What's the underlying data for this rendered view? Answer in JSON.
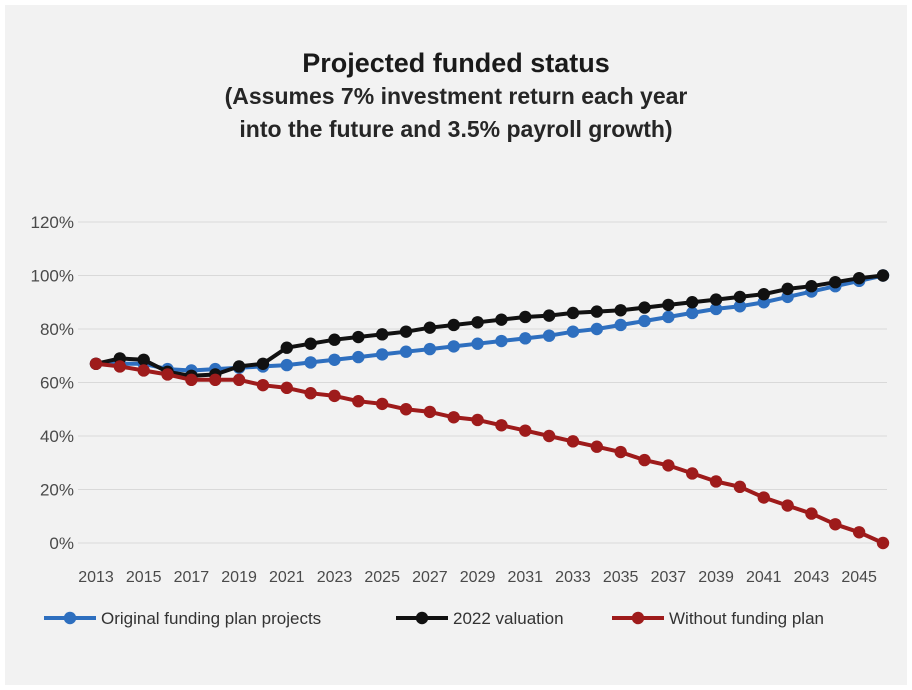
{
  "chart_data": {
    "type": "line",
    "title": "Projected funded status",
    "subtitle_lines": [
      "(Assumes 7% investment return each year",
      "into the future and 3.5% payroll growth)"
    ],
    "xlabel": "",
    "ylabel": "",
    "ylim": [
      0,
      120
    ],
    "yticks": [
      "0%",
      "20%",
      "40%",
      "60%",
      "80%",
      "100%",
      "120%"
    ],
    "ytick_values": [
      0,
      20,
      40,
      60,
      80,
      100,
      120
    ],
    "xticks": [
      "2013",
      "2015",
      "2017",
      "2019",
      "2021",
      "2023",
      "2025",
      "2027",
      "2029",
      "2031",
      "2033",
      "2035",
      "2037",
      "2039",
      "2041",
      "2043",
      "2045"
    ],
    "grid": true,
    "legend_position": "bottom",
    "x": [
      2013,
      2014,
      2015,
      2016,
      2017,
      2018,
      2019,
      2020,
      2021,
      2022,
      2023,
      2024,
      2025,
      2026,
      2027,
      2028,
      2029,
      2030,
      2031,
      2032,
      2033,
      2034,
      2035,
      2036,
      2037,
      2038,
      2039,
      2040,
      2041,
      2042,
      2043,
      2044,
      2045,
      2046
    ],
    "series": [
      {
        "name": "Original funding plan projects",
        "color": "#2e6fbf",
        "values": [
          67,
          67,
          67,
          65,
          64.5,
          65,
          65.5,
          66,
          66.5,
          67.5,
          68.5,
          69.5,
          70.5,
          71.5,
          72.5,
          73.5,
          74.5,
          75.5,
          76.5,
          77.5,
          79,
          80,
          81.5,
          83,
          84.5,
          86,
          87.5,
          88.5,
          90,
          92,
          94,
          96,
          98,
          100
        ]
      },
      {
        "name": "2022 valuation",
        "color": "#111111",
        "values": [
          67,
          69,
          68.5,
          64,
          62.5,
          63,
          66,
          67,
          73,
          74.5,
          76,
          77,
          78,
          79,
          80.5,
          81.5,
          82.5,
          83.5,
          84.5,
          85,
          86,
          86.5,
          87,
          88,
          89,
          90,
          91,
          92,
          93,
          95,
          96,
          97.5,
          99,
          100
        ]
      },
      {
        "name": "Without funding plan",
        "color": "#9e1b1b",
        "values": [
          67,
          66,
          64.5,
          63,
          61,
          61,
          61,
          59,
          58,
          56,
          55,
          53,
          52,
          50,
          49,
          47,
          46,
          44,
          42,
          40,
          38,
          36,
          34,
          31,
          29,
          26,
          23,
          21,
          17,
          14,
          11,
          7,
          4,
          0
        ]
      }
    ]
  }
}
